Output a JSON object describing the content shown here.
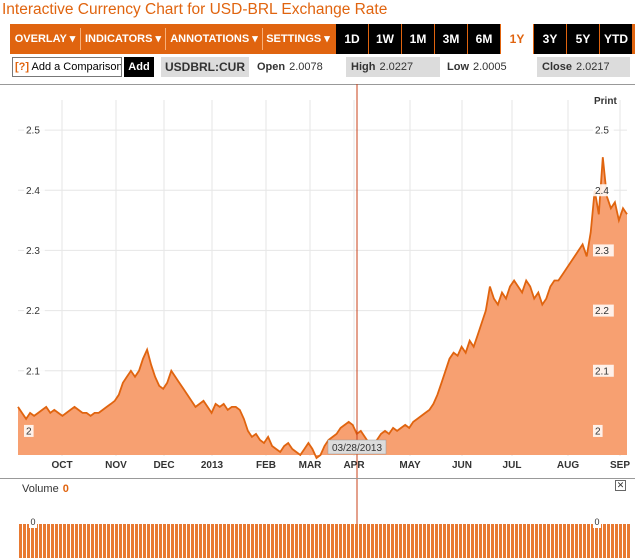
{
  "title": "Interactive Currency Chart for USD-BRL Exchange Rate",
  "toolbar": {
    "menus": [
      "OVERLAY ▾",
      "INDICATORS ▾",
      "ANNOTATIONS ▾",
      "SETTINGS ▾"
    ],
    "ranges": [
      "1D",
      "1W",
      "1M",
      "3M",
      "6M",
      "1Y",
      "3Y",
      "5Y",
      "YTD"
    ],
    "active_range": "1Y"
  },
  "compare": {
    "help": "[?]",
    "placeholder": "Add a Comparison",
    "add_label": "Add"
  },
  "quote": {
    "symbol": "USDBRL:CUR",
    "open_label": "Open",
    "open": "2.0078",
    "high_label": "High",
    "high": "2.0227",
    "low_label": "Low",
    "low": "2.0005",
    "close_label": "Close",
    "close": "2.0217"
  },
  "print_label": "Print",
  "crosshair_date": "03/28/2013",
  "volume": {
    "label": "Volume",
    "value": "0",
    "axis_label": "0"
  },
  "colors": {
    "accent": "#e0640f",
    "area": "#f7a071",
    "line": "#e0640f"
  },
  "chart_data": {
    "type": "area",
    "y_ticks": [
      "2",
      "2.1",
      "2.2",
      "2.3",
      "2.4",
      "2.5"
    ],
    "ylim": [
      1.96,
      2.55
    ],
    "x_ticks": [
      "OCT",
      "NOV",
      "DEC",
      "2013",
      "FEB",
      "MAR",
      "APR",
      "MAY",
      "JUN",
      "JUL",
      "AUG",
      "SEP"
    ],
    "series": [
      {
        "values": [
          2.04,
          2.03,
          2.02,
          2.03,
          2.025,
          2.03,
          2.035,
          2.04,
          2.03,
          2.035,
          2.03,
          2.025,
          2.03,
          2.035,
          2.04,
          2.035,
          2.03,
          2.03,
          2.025,
          2.03,
          2.03,
          2.035,
          2.04,
          2.045,
          2.05,
          2.06,
          2.08,
          2.09,
          2.1,
          2.09,
          2.1,
          2.12,
          2.135,
          2.11,
          2.09,
          2.075,
          2.07,
          2.08,
          2.1,
          2.09,
          2.08,
          2.07,
          2.06,
          2.05,
          2.04,
          2.045,
          2.05,
          2.04,
          2.03,
          2.045,
          2.04,
          2.045,
          2.035,
          2.04,
          2.04,
          2.035,
          2.02,
          2.0,
          1.99,
          1.995,
          1.985,
          1.98,
          1.99,
          1.975,
          1.97,
          1.965,
          1.975,
          1.98,
          1.97,
          1.965,
          1.96,
          1.97,
          1.98,
          1.97,
          1.955,
          1.96,
          1.975,
          1.985,
          1.99,
          1.995,
          2.005,
          2.01,
          2.015,
          2.01,
          1.995,
          2.0,
          1.99,
          1.98,
          1.975,
          1.985,
          1.995,
          2.0,
          1.995,
          2.005,
          2.0,
          2.005,
          2.01,
          2.005,
          2.015,
          2.02,
          2.025,
          2.03,
          2.035,
          2.045,
          2.06,
          2.08,
          2.1,
          2.12,
          2.13,
          2.125,
          2.14,
          2.13,
          2.15,
          2.14,
          2.16,
          2.18,
          2.2,
          2.24,
          2.22,
          2.21,
          2.23,
          2.22,
          2.24,
          2.25,
          2.24,
          2.23,
          2.25,
          2.24,
          2.22,
          2.23,
          2.21,
          2.22,
          2.24,
          2.25,
          2.25,
          2.26,
          2.27,
          2.28,
          2.29,
          2.3,
          2.31,
          2.29,
          2.33,
          2.4,
          2.36,
          2.455,
          2.39,
          2.37,
          2.38,
          2.35,
          2.37,
          2.36
        ]
      }
    ]
  }
}
